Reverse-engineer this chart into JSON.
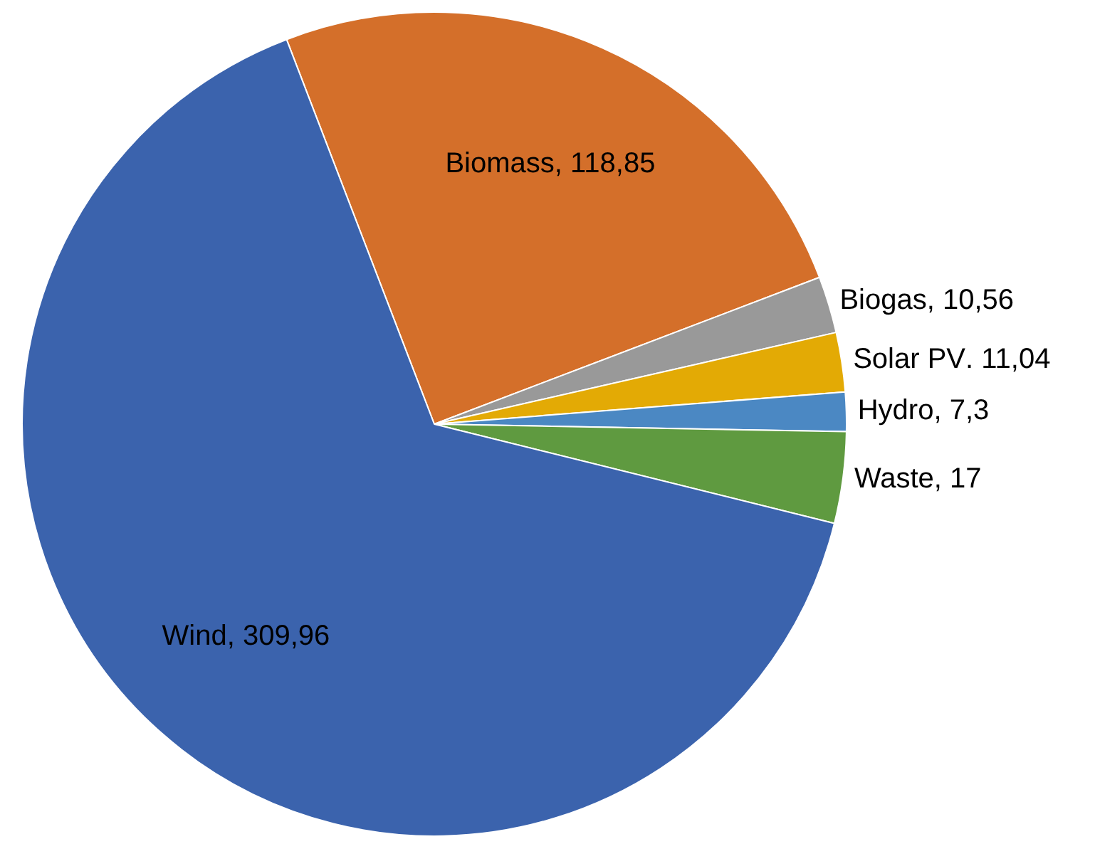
{
  "chart_data": {
    "type": "pie",
    "categories": [
      "Biomass",
      "Biogas",
      "Solar PV",
      "Hydro",
      "Waste",
      "Wind"
    ],
    "values": [
      118.85,
      10.56,
      11.04,
      7.3,
      17,
      309.96
    ],
    "colors": [
      "#d46f2a",
      "#999999",
      "#e3aa05",
      "#4b88c3",
      "#5f9a40",
      "#3b63ad"
    ],
    "value_labels": [
      ", 118,85",
      ", 10,56",
      ". 11,04",
      ", 7,3",
      ", 17",
      ", 309,96"
    ],
    "legend": false
  }
}
